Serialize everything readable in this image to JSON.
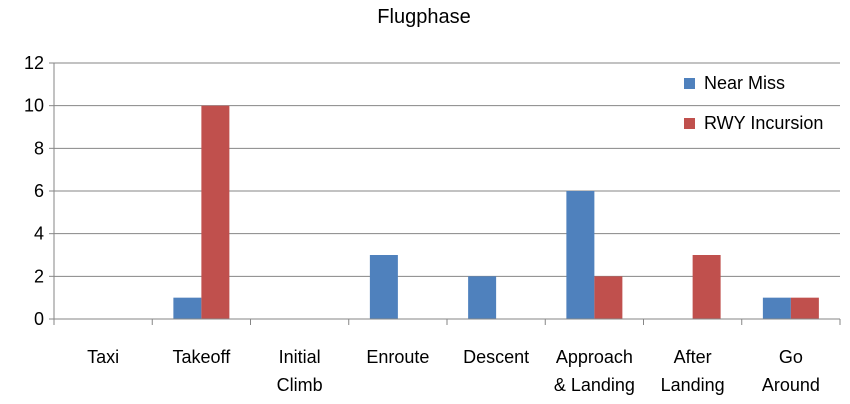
{
  "chart_data": {
    "type": "bar",
    "title": "Flugphase",
    "categories": [
      [
        "Taxi"
      ],
      [
        "Takeoff"
      ],
      [
        "Initial",
        "Climb"
      ],
      [
        "Enroute"
      ],
      [
        "Descent"
      ],
      [
        "Approach",
        "& Landing"
      ],
      [
        "After",
        "Landing"
      ],
      [
        "Go",
        "Around"
      ]
    ],
    "series": [
      {
        "name": "Near Miss",
        "color": "#4f81bd",
        "values": [
          0,
          1,
          0,
          3,
          2,
          6,
          0,
          1
        ]
      },
      {
        "name": "RWY Incursion",
        "color": "#c0504d",
        "values": [
          0,
          10,
          0,
          0,
          0,
          2,
          3,
          1
        ]
      }
    ],
    "ylim": [
      0,
      12
    ],
    "yticks": [
      "0",
      "2",
      "4",
      "6",
      "8",
      "10",
      "12"
    ],
    "grid": true,
    "legend_position": "top-right",
    "axis_color": "#868686",
    "grid_color": "#868686"
  }
}
